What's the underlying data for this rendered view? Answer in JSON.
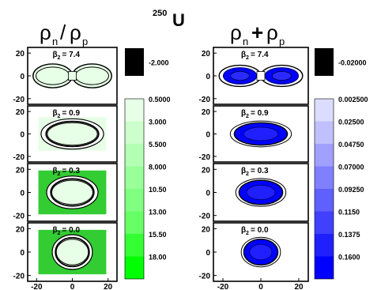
{
  "chart_data": [
    {
      "type": "heatmap",
      "title": "ρn/ρp",
      "title_main": "ρ",
      "title_sub_1": "n",
      "title_sep": "/",
      "title_main_2": "ρ",
      "title_sub_2": "p",
      "nucleus": "250U",
      "nucleus_mass": "250",
      "nucleus_symbol": "U",
      "x_ticks": [
        "-20",
        "0",
        "20"
      ],
      "y_ticks": [
        "20",
        "0",
        "-20"
      ],
      "xlim": [
        -25,
        25
      ],
      "ylim": [
        -25,
        25
      ],
      "panels": [
        {
          "beta_label": "β",
          "beta_sub": "2",
          "beta_value": "= 7.4",
          "beta": 7.4,
          "shape": "elongated"
        },
        {
          "beta_label": "β",
          "beta_sub": "2",
          "beta_value": "= 0.9",
          "beta": 0.9,
          "shape": "prolate"
        },
        {
          "beta_label": "β",
          "beta_sub": "2",
          "beta_value": "= 0.3",
          "beta": 0.3,
          "shape": "slightly-prolate"
        },
        {
          "beta_label": "β",
          "beta_sub": "2",
          "beta_value": "= 0.0",
          "beta": 0.0,
          "shape": "spherical"
        }
      ],
      "colorbar": {
        "overflow_label": "-2.000",
        "levels": [
          "0.5000",
          "3.000",
          "5.500",
          "8.000",
          "10.50",
          "13.00",
          "15.50",
          "18.00"
        ],
        "colors": [
          "#ffffff",
          "#e6ffe6",
          "#ccffcc",
          "#b3ffb3",
          "#99ff99",
          "#80ff80",
          "#66ff66",
          "#33ff33",
          "#00ff00"
        ]
      }
    },
    {
      "type": "heatmap",
      "title": "ρn+ρp",
      "title_main": "ρ",
      "title_sub_1": "n",
      "title_sep": "+",
      "title_main_2": "ρ",
      "title_sub_2": "p",
      "x_ticks": [
        "-20",
        "0",
        "20"
      ],
      "y_ticks": [
        "20",
        "0",
        "-20"
      ],
      "xlim": [
        -25,
        25
      ],
      "ylim": [
        -25,
        25
      ],
      "panels": [
        {
          "beta_label": "β",
          "beta_sub": "2",
          "beta_value": "= 7.4",
          "beta": 7.4,
          "shape": "elongated"
        },
        {
          "beta_label": "β",
          "beta_sub": "2",
          "beta_value": "= 0.9",
          "beta": 0.9,
          "shape": "prolate"
        },
        {
          "beta_label": "β",
          "beta_sub": "2",
          "beta_value": "= 0.3",
          "beta": 0.3,
          "shape": "slightly-prolate"
        },
        {
          "beta_label": "β",
          "beta_sub": "2",
          "beta_value": "= 0.0",
          "beta": 0.0,
          "shape": "spherical"
        }
      ],
      "colorbar": {
        "overflow_label": "-0.02000",
        "levels": [
          "0.002500",
          "0.02500",
          "0.04750",
          "0.07000",
          "0.09250",
          "0.1150",
          "0.1375",
          "0.1600"
        ],
        "colors": [
          "#ffffff",
          "#dcdcff",
          "#c0c0ff",
          "#a0a0ff",
          "#8080ff",
          "#6060ff",
          "#4040ff",
          "#2020ff",
          "#0000ff"
        ]
      }
    }
  ]
}
